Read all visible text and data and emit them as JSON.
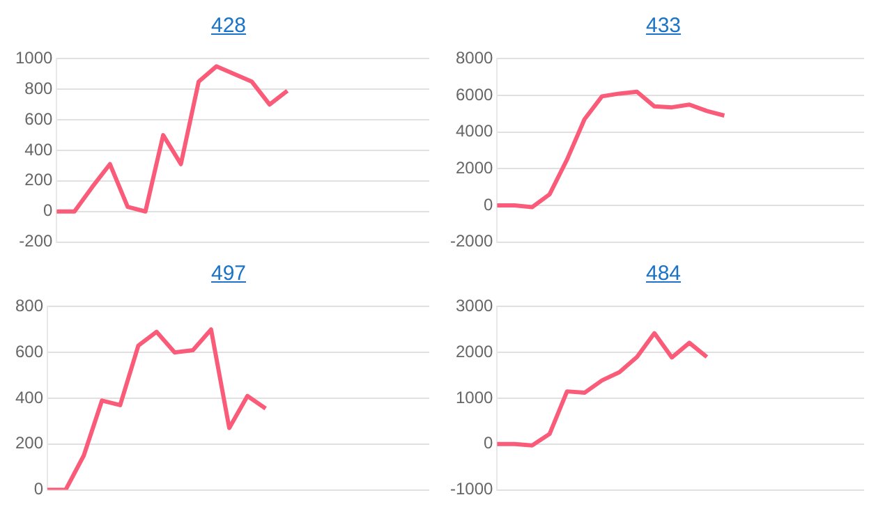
{
  "chart_data": [
    {
      "type": "line",
      "title": "428",
      "categories": [
        null,
        null,
        null,
        null,
        null,
        null,
        null,
        null,
        null,
        null,
        null,
        null,
        null,
        null,
        null,
        null,
        null,
        null,
        null,
        null,
        null,
        null
      ],
      "series": [
        {
          "color": "#f95b79",
          "values": [
            0,
            0,
            160,
            310,
            30,
            0,
            500,
            310,
            850,
            950,
            900,
            850,
            700,
            790,
            null,
            null,
            null,
            null,
            null,
            null,
            null,
            null
          ]
        }
      ],
      "ylim": [
        -200,
        1000
      ],
      "yticks": [
        -200,
        0,
        200,
        400,
        600,
        800,
        1000
      ],
      "grid": "y",
      "legend": false,
      "tick_labels": "y",
      "marker": "none",
      "line_style": "solid"
    },
    {
      "type": "line",
      "title": "433",
      "categories": [
        null,
        null,
        null,
        null,
        null,
        null,
        null,
        null,
        null,
        null,
        null,
        null,
        null,
        null,
        null,
        null,
        null,
        null,
        null,
        null,
        null,
        null
      ],
      "series": [
        {
          "color": "#f95b79",
          "values": [
            0,
            0,
            -100,
            600,
            2500,
            4700,
            5950,
            6100,
            6200,
            5400,
            5350,
            5500,
            5150,
            4900,
            null,
            null,
            null,
            null,
            null,
            null,
            null,
            null
          ]
        }
      ],
      "ylim": [
        -2000,
        8000
      ],
      "yticks": [
        -2000,
        0,
        2000,
        4000,
        6000,
        8000
      ],
      "grid": "y",
      "legend": false,
      "tick_labels": "y",
      "marker": "none",
      "line_style": "solid"
    },
    {
      "type": "line",
      "title": "497",
      "categories": [
        null,
        null,
        null,
        null,
        null,
        null,
        null,
        null,
        null,
        null,
        null,
        null,
        null,
        null,
        null,
        null,
        null,
        null,
        null,
        null,
        null,
        null
      ],
      "series": [
        {
          "color": "#f95b79",
          "values": [
            0,
            0,
            150,
            390,
            370,
            630,
            690,
            600,
            610,
            700,
            270,
            410,
            355,
            null,
            null,
            null,
            null,
            null,
            null,
            null,
            null,
            null
          ]
        }
      ],
      "ylim": [
        0,
        800
      ],
      "yticks": [
        0,
        200,
        400,
        600,
        800
      ],
      "grid": "y",
      "legend": false,
      "tick_labels": "y",
      "marker": "none",
      "line_style": "solid"
    },
    {
      "type": "line",
      "title": "484",
      "categories": [
        null,
        null,
        null,
        null,
        null,
        null,
        null,
        null,
        null,
        null,
        null,
        null,
        null,
        null,
        null,
        null,
        null,
        null,
        null,
        null,
        null,
        null
      ],
      "series": [
        {
          "color": "#f95b79",
          "values": [
            0,
            0,
            -30,
            220,
            1150,
            1120,
            1390,
            1570,
            1900,
            2420,
            1890,
            2210,
            1900,
            null,
            null,
            null,
            null,
            null,
            null,
            null,
            null,
            null
          ]
        }
      ],
      "ylim": [
        -1000,
        3000
      ],
      "yticks": [
        -1000,
        0,
        1000,
        2000,
        3000
      ],
      "grid": "y",
      "legend": false,
      "tick_labels": "y",
      "marker": "none",
      "line_style": "solid"
    }
  ]
}
